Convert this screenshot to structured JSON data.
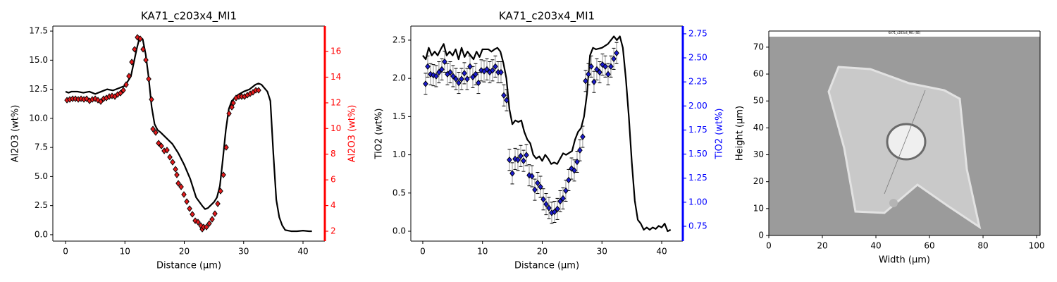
{
  "chart_data": [
    {
      "type": "line",
      "title": "KA71_c203x4_MI1",
      "x_label": "Distance (µm)",
      "y_label": "Al2O3 (wt%)",
      "y2_label": "Al2O3 (wt%)",
      "y2_color": "#ff0000",
      "xlim": [
        -2.14,
        43.68
      ],
      "xticks": [
        0,
        10,
        20,
        30,
        40
      ],
      "ylim": [
        -0.55,
        17.93
      ],
      "yticks": [
        {
          "value": 0,
          "label": "0.0"
        },
        2.5,
        {
          "value": 5,
          "label": "5.0"
        },
        7.5,
        {
          "value": 10,
          "label": "10.0"
        },
        12.5,
        {
          "value": 15,
          "label": "15.0"
        },
        17.5
      ],
      "y2lim": [
        1.23,
        17.98
      ],
      "y2ticks": [
        2,
        4,
        6,
        8,
        10,
        12,
        14,
        16
      ],
      "series": [
        {
          "color": "#000000",
          "x": [
            0,
            0.5,
            1,
            2,
            3,
            4,
            5,
            6,
            7,
            8,
            9,
            10,
            11,
            11.5,
            12,
            12.5,
            13,
            13.5,
            14,
            14.5,
            15,
            15.5,
            16,
            17,
            18,
            19,
            20,
            21,
            22,
            23,
            23.5,
            24,
            25,
            25.5,
            26,
            26.5,
            27,
            27.5,
            28,
            29,
            30,
            31,
            32,
            32.5,
            33,
            34,
            34.5,
            35,
            35.5,
            36,
            36.5,
            37,
            38,
            39,
            40,
            41,
            41.5
          ],
          "values": [
            12.3,
            12.2,
            12.3,
            12.3,
            12.2,
            12.3,
            12.1,
            12.3,
            12.5,
            12.4,
            12.6,
            12.8,
            13.6,
            14.8,
            16.0,
            17.0,
            16.8,
            15.5,
            13.5,
            11.0,
            9.5,
            9.0,
            8.8,
            8.3,
            7.8,
            7.0,
            6.0,
            4.8,
            3.2,
            2.5,
            2.2,
            2.3,
            2.8,
            3.2,
            4.2,
            6.5,
            9.0,
            10.8,
            11.5,
            12.0,
            12.3,
            12.5,
            12.9,
            13.0,
            12.9,
            12.3,
            11.5,
            7.0,
            3.0,
            1.5,
            0.8,
            0.4,
            0.3,
            0.3,
            0.35,
            0.3,
            0.3
          ]
        },
        {
          "color": "#e41a1c",
          "axis": "y2",
          "marker": "diamond",
          "x": [
            0.24,
            0.71,
            1.19,
            1.66,
            2.14,
            2.61,
            3.09,
            3.56,
            4.04,
            4.51,
            4.99,
            5.46,
            5.93,
            6.41,
            6.88,
            7.36,
            7.83,
            8.31,
            8.78,
            9.26,
            9.73,
            10.21,
            10.68,
            11.16,
            11.63,
            12.11,
            12.58,
            13.06,
            13.53,
            14.01,
            14.48,
            14.72,
            15.19,
            15.67,
            16.14,
            16.62,
            17.09,
            17.57,
            18.04,
            18.52,
            18.75,
            18.99,
            19.47,
            19.94,
            20.42,
            20.89,
            21.36,
            21.84,
            22.31,
            22.79,
            23.03,
            23.26,
            23.74,
            24.21,
            24.69,
            25.16,
            25.64,
            26.11,
            26.59,
            27.06,
            27.54,
            28.01,
            28.25,
            28.72,
            29.2,
            29.67,
            30.15,
            30.62,
            31.1,
            31.57,
            32.05,
            32.52
          ],
          "values": [
            12.21,
            12.27,
            12.32,
            12.32,
            12.27,
            12.32,
            12.27,
            12.32,
            12.16,
            12.27,
            12.32,
            12.21,
            12.1,
            12.32,
            12.38,
            12.49,
            12.54,
            12.49,
            12.65,
            12.76,
            12.98,
            13.42,
            14.08,
            15.18,
            16.17,
            17.1,
            16.99,
            16.17,
            15.34,
            13.86,
            12.27,
            9.96,
            9.69,
            8.86,
            8.64,
            8.26,
            8.32,
            7.77,
            7.38,
            6.83,
            6.39,
            5.73,
            5.46,
            4.86,
            4.31,
            3.76,
            3.32,
            2.82,
            2.71,
            2.44,
            2.16,
            2.33,
            2.33,
            2.6,
            2.93,
            3.37,
            4.14,
            5.13,
            6.39,
            8.53,
            11.17,
            11.66,
            11.99,
            12.38,
            12.49,
            12.49,
            12.49,
            12.6,
            12.71,
            12.82,
            12.98,
            12.98
          ]
        }
      ]
    },
    {
      "type": "line",
      "title": "KA71_c203x4_MI1",
      "x_label": "Distance (µm)",
      "y_label": "TiO2 (wt%)",
      "y2_label": "TiO2 (wt%)",
      "y2_color": "#0000ff",
      "xlim": [
        -2.0,
        43.54
      ],
      "xticks": [
        0,
        10,
        20,
        30,
        40
      ],
      "ylim": [
        -0.129,
        2.684
      ],
      "yticks": [
        {
          "value": 0,
          "label": "0.0"
        },
        0.5,
        {
          "value": 1,
          "label": "1.0"
        },
        1.5,
        {
          "value": 2,
          "label": "2.0"
        },
        2.5
      ],
      "y2lim": [
        0.596,
        2.83
      ],
      "y2ticks": [
        0.75,
        {
          "value": 1,
          "label": "1.00"
        },
        1.25,
        {
          "value": 1.5,
          "label": "1.50"
        },
        1.75,
        {
          "value": 2,
          "label": "2.00"
        },
        2.25,
        {
          "value": 2.5,
          "label": "2.50"
        },
        2.75
      ],
      "yerr": 0.11,
      "series": [
        {
          "color": "#000000",
          "x": [
            0,
            0.5,
            1,
            1.5,
            2,
            2.5,
            3,
            3.5,
            4,
            4.5,
            5,
            5.5,
            6,
            6.5,
            7,
            7.5,
            8,
            8.5,
            9,
            9.5,
            10,
            11,
            11.5,
            12,
            12.5,
            13,
            13.5,
            14,
            14.5,
            15,
            15.5,
            16,
            16.5,
            17,
            17.5,
            18,
            18.5,
            19,
            19.5,
            20,
            20.5,
            21,
            21.5,
            22,
            22.5,
            23,
            23.5,
            24,
            25,
            25.5,
            26,
            26.5,
            27,
            27.5,
            28,
            28.5,
            29,
            30,
            31,
            32,
            32.5,
            33,
            33.5,
            34,
            34.5,
            35,
            35.5,
            36,
            36.5,
            37,
            37.5,
            38,
            38.5,
            39,
            39.5,
            40,
            40.5,
            41,
            41.5
          ],
          "values": [
            2.3,
            2.25,
            2.4,
            2.3,
            2.35,
            2.3,
            2.38,
            2.45,
            2.3,
            2.35,
            2.3,
            2.38,
            2.25,
            2.4,
            2.28,
            2.35,
            2.3,
            2.25,
            2.35,
            2.28,
            2.38,
            2.38,
            2.35,
            2.38,
            2.4,
            2.35,
            2.2,
            2.0,
            1.6,
            1.4,
            1.45,
            1.43,
            1.45,
            1.3,
            1.2,
            1.15,
            1.0,
            0.95,
            0.98,
            0.92,
            1.0,
            0.95,
            0.88,
            0.9,
            0.88,
            0.95,
            1.02,
            1.0,
            1.05,
            1.2,
            1.3,
            1.35,
            1.5,
            1.8,
            2.3,
            2.4,
            2.38,
            2.4,
            2.45,
            2.55,
            2.5,
            2.55,
            2.4,
            2.0,
            1.5,
            0.9,
            0.4,
            0.15,
            0.1,
            0.02,
            0.05,
            0.02,
            0.05,
            0.03,
            0.07,
            0.05,
            0.1,
            0.0,
            0.02
          ]
        },
        {
          "color": "#1a1acd",
          "axis": "y2",
          "marker": "diamond",
          "x": [
            0.47,
            0.83,
            1.3,
            1.77,
            2.24,
            2.71,
            3.19,
            3.66,
            4.13,
            4.6,
            5.07,
            5.55,
            6.02,
            6.49,
            6.96,
            7.43,
            7.91,
            8.38,
            8.85,
            9.32,
            9.79,
            10.27,
            10.74,
            11.21,
            11.68,
            12.15,
            12.63,
            13.1,
            13.57,
            14.04,
            14.51,
            14.99,
            15.46,
            15.93,
            16.4,
            16.87,
            17.35,
            17.82,
            18.29,
            18.76,
            19.23,
            19.71,
            20.18,
            20.65,
            21.12,
            21.59,
            22.06,
            22.54,
            23.01,
            23.48,
            23.95,
            24.42,
            24.9,
            25.37,
            25.84,
            26.31,
            26.78,
            27.26,
            27.73,
            28.2,
            28.67,
            29.14,
            29.62,
            30.09,
            30.56,
            31.03,
            31.5,
            31.98,
            32.45
          ],
          "values": [
            2.23,
            2.41,
            2.33,
            2.32,
            2.31,
            2.35,
            2.38,
            2.46,
            2.33,
            2.35,
            2.31,
            2.28,
            2.24,
            2.28,
            2.34,
            2.28,
            2.41,
            2.3,
            2.33,
            2.24,
            2.37,
            2.36,
            2.38,
            2.35,
            2.37,
            2.41,
            2.35,
            2.35,
            2.11,
            2.06,
            1.44,
            1.3,
            1.45,
            1.44,
            1.48,
            1.43,
            1.49,
            1.28,
            1.27,
            1.13,
            1.2,
            1.16,
            1.03,
            0.98,
            0.94,
            0.89,
            0.9,
            0.93,
            1.01,
            1.04,
            1.12,
            1.23,
            1.35,
            1.33,
            1.42,
            1.54,
            1.68,
            2.26,
            2.33,
            2.41,
            2.25,
            2.38,
            2.35,
            2.43,
            2.41,
            2.33,
            2.41,
            2.49,
            2.55
          ]
        }
      ]
    },
    {
      "type": "image",
      "title": "KA71_c203x4_MI1 (SE)",
      "x_label": "Width (µm)",
      "y_label": "Height (µm)",
      "xlim": [
        0,
        101.3
      ],
      "xticks": [
        0,
        20,
        40,
        60,
        80,
        100
      ],
      "ylim": [
        0,
        76
      ],
      "yticks": [
        0,
        10,
        20,
        30,
        40,
        50,
        60,
        70
      ]
    }
  ]
}
